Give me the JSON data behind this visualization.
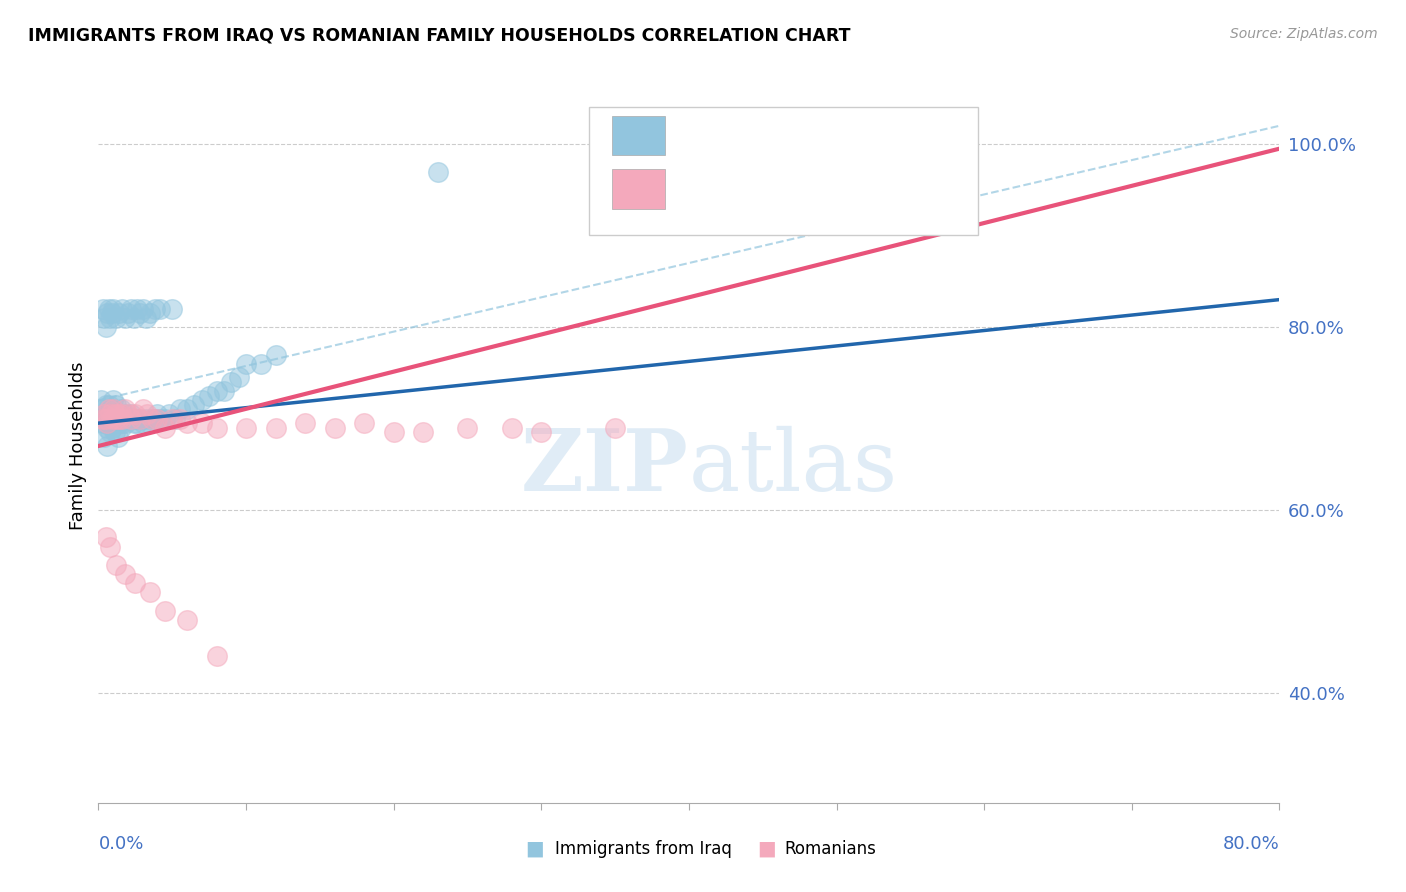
{
  "title": "IMMIGRANTS FROM IRAQ VS ROMANIAN FAMILY HOUSEHOLDS CORRELATION CHART",
  "source": "Source: ZipAtlas.com",
  "ylabel": "Family Households",
  "xlim": [
    0.0,
    0.8
  ],
  "ylim": [
    0.28,
    1.06
  ],
  "yticks": [
    0.4,
    0.6,
    0.8,
    1.0
  ],
  "ytick_labels": [
    "40.0%",
    "60.0%",
    "80.0%",
    "100.0%"
  ],
  "iraq_color": "#92c5de",
  "romanian_color": "#f4a9bc",
  "iraq_line_color": "#2166ac",
  "romanian_line_color": "#e8537a",
  "dashed_line_color": "#92c5de",
  "watermark_color": "#cce0f0",
  "iraq_scatter_x": [
    0.002,
    0.003,
    0.003,
    0.004,
    0.005,
    0.005,
    0.006,
    0.006,
    0.006,
    0.007,
    0.007,
    0.008,
    0.008,
    0.009,
    0.009,
    0.01,
    0.01,
    0.011,
    0.011,
    0.012,
    0.012,
    0.013,
    0.013,
    0.014,
    0.015,
    0.015,
    0.016,
    0.017,
    0.018,
    0.019,
    0.02,
    0.021,
    0.022,
    0.023,
    0.024,
    0.025,
    0.026,
    0.028,
    0.03,
    0.032,
    0.034,
    0.036,
    0.038,
    0.04,
    0.042,
    0.045,
    0.048,
    0.052,
    0.055,
    0.06,
    0.065,
    0.07,
    0.075,
    0.08,
    0.085,
    0.09,
    0.095,
    0.1,
    0.11,
    0.12,
    0.003,
    0.004,
    0.005,
    0.006,
    0.007,
    0.008,
    0.009,
    0.01,
    0.012,
    0.014,
    0.016,
    0.018,
    0.02,
    0.022,
    0.024,
    0.026,
    0.028,
    0.03,
    0.032,
    0.035,
    0.038,
    0.042,
    0.05,
    0.23
  ],
  "iraq_scatter_y": [
    0.72,
    0.71,
    0.695,
    0.68,
    0.715,
    0.7,
    0.705,
    0.69,
    0.67,
    0.715,
    0.695,
    0.7,
    0.685,
    0.71,
    0.69,
    0.72,
    0.695,
    0.705,
    0.685,
    0.715,
    0.695,
    0.7,
    0.68,
    0.695,
    0.71,
    0.69,
    0.695,
    0.7,
    0.705,
    0.695,
    0.7,
    0.7,
    0.705,
    0.7,
    0.695,
    0.7,
    0.695,
    0.7,
    0.695,
    0.7,
    0.695,
    0.7,
    0.7,
    0.705,
    0.7,
    0.7,
    0.705,
    0.7,
    0.71,
    0.71,
    0.715,
    0.72,
    0.725,
    0.73,
    0.73,
    0.74,
    0.745,
    0.76,
    0.76,
    0.77,
    0.82,
    0.81,
    0.8,
    0.815,
    0.82,
    0.81,
    0.815,
    0.82,
    0.81,
    0.815,
    0.82,
    0.81,
    0.815,
    0.82,
    0.81,
    0.82,
    0.815,
    0.82,
    0.81,
    0.815,
    0.82,
    0.82,
    0.82,
    0.97
  ],
  "romanian_scatter_x": [
    0.003,
    0.004,
    0.005,
    0.006,
    0.007,
    0.008,
    0.009,
    0.01,
    0.011,
    0.012,
    0.013,
    0.014,
    0.015,
    0.016,
    0.018,
    0.02,
    0.022,
    0.025,
    0.028,
    0.03,
    0.033,
    0.036,
    0.04,
    0.045,
    0.05,
    0.055,
    0.06,
    0.07,
    0.08,
    0.1,
    0.12,
    0.14,
    0.16,
    0.18,
    0.2,
    0.22,
    0.25,
    0.28,
    0.3,
    0.35,
    0.005,
    0.008,
    0.012,
    0.018,
    0.025,
    0.035,
    0.045,
    0.06,
    0.08,
    0.43
  ],
  "romanian_scatter_y": [
    0.7,
    0.705,
    0.7,
    0.695,
    0.71,
    0.705,
    0.7,
    0.71,
    0.705,
    0.7,
    0.705,
    0.7,
    0.705,
    0.7,
    0.71,
    0.705,
    0.7,
    0.705,
    0.7,
    0.71,
    0.705,
    0.7,
    0.7,
    0.69,
    0.7,
    0.7,
    0.695,
    0.695,
    0.69,
    0.69,
    0.69,
    0.695,
    0.69,
    0.695,
    0.685,
    0.685,
    0.69,
    0.69,
    0.685,
    0.69,
    0.57,
    0.56,
    0.54,
    0.53,
    0.52,
    0.51,
    0.49,
    0.48,
    0.44,
    0.97
  ],
  "iraq_line": {
    "x0": 0.0,
    "y0": 0.695,
    "x1": 0.8,
    "y1": 0.83
  },
  "romanian_line": {
    "x0": 0.0,
    "y0": 0.67,
    "x1": 0.8,
    "y1": 0.995
  },
  "dashed_line": {
    "x0": 0.0,
    "y0": 0.72,
    "x1": 0.8,
    "y1": 1.02
  }
}
